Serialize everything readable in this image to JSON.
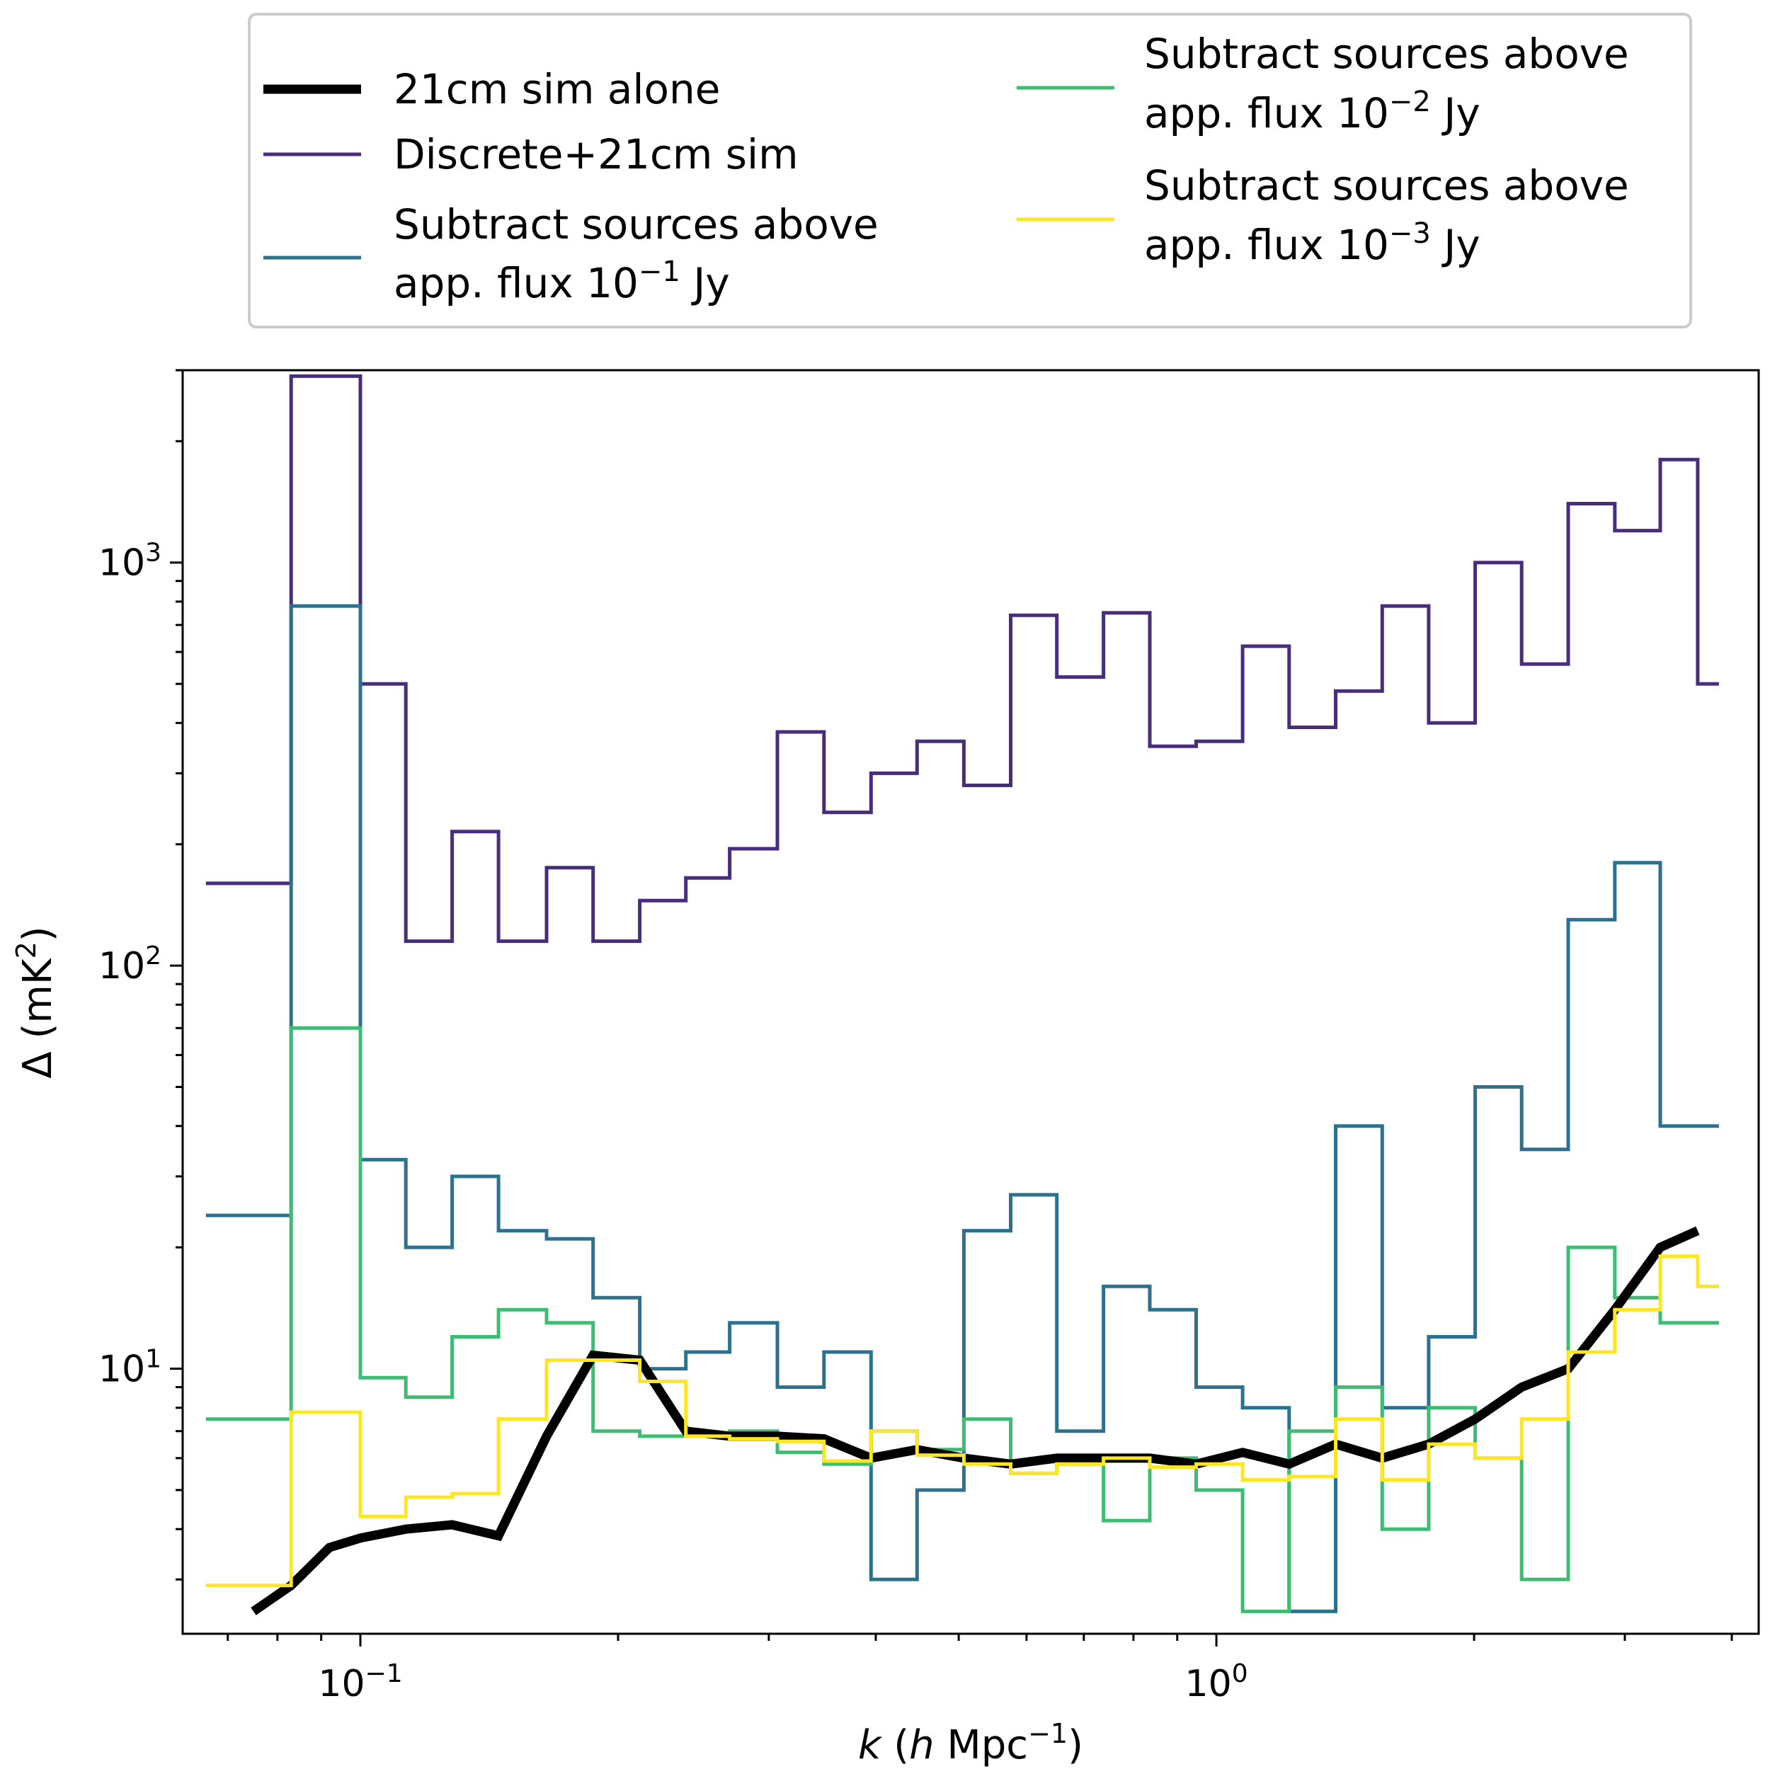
{
  "chart_data": {
    "type": "line",
    "xscale": "log",
    "yscale": "log",
    "xlim": [
      0.062,
      4.3
    ],
    "ylim": [
      2.2,
      3000
    ],
    "xlabel": {
      "italic": "k",
      "text1": " (",
      "italic2": "h",
      "text2": " Mpc",
      "sup": "−1",
      "text3": ")"
    },
    "ylabel": {
      "text": "Δ (mK",
      "sup": "2",
      "close": ")"
    },
    "x_tick_labels": [
      {
        "value": 0.1,
        "base": "10",
        "exp": "−1"
      },
      {
        "value": 1,
        "base": "10",
        "exp": "0"
      }
    ],
    "y_tick_labels": [
      {
        "value": 10,
        "base": "10",
        "exp": "1"
      },
      {
        "value": 100,
        "base": "10",
        "exp": "2"
      },
      {
        "value": 1000,
        "base": "10",
        "exp": "3"
      }
    ],
    "legend_placement": "top, above plot",
    "series": [
      {
        "key": "discrete",
        "color": "#472d7b",
        "width": 5,
        "step": true,
        "legend": [
          "Discrete+21cm sim"
        ],
        "x": [
          0.066,
          0.083,
          0.1,
          0.113,
          0.128,
          0.145,
          0.165,
          0.187,
          0.212,
          0.24,
          0.27,
          0.307,
          0.348,
          0.395,
          0.447,
          0.507,
          0.575,
          0.651,
          0.738,
          0.836,
          0.947,
          1.073,
          1.216,
          1.378,
          1.562,
          1.77,
          2.006,
          2.273,
          2.576,
          2.92,
          3.3,
          3.65
        ],
        "y": [
          160,
          2900,
          500,
          115,
          215,
          115,
          175,
          115,
          145,
          165,
          195,
          380,
          240,
          300,
          360,
          280,
          740,
          520,
          750,
          350,
          360,
          620,
          390,
          480,
          780,
          400,
          1000,
          560,
          1400,
          1200,
          1800,
          500
        ]
      },
      {
        "key": "sub1",
        "color": "#2c728e",
        "width": 5,
        "step": true,
        "legend": [
          "Subtract sources above",
          "app. flux 10",
          "−1",
          " Jy"
        ],
        "x": [
          0.066,
          0.083,
          0.1,
          0.113,
          0.128,
          0.145,
          0.165,
          0.187,
          0.212,
          0.24,
          0.27,
          0.307,
          0.348,
          0.395,
          0.447,
          0.507,
          0.575,
          0.651,
          0.738,
          0.836,
          0.947,
          1.073,
          1.216,
          1.378,
          1.562,
          1.77,
          2.006,
          2.273,
          2.576,
          2.92,
          3.3,
          3.65
        ],
        "y": [
          24,
          780,
          33,
          20,
          30,
          22,
          21,
          15,
          10,
          11,
          13,
          9,
          11,
          3,
          5,
          22,
          27,
          7,
          16,
          14,
          9,
          8,
          2.5,
          40,
          8,
          12,
          50,
          35,
          130,
          180,
          40,
          40
        ]
      },
      {
        "key": "sub2",
        "color": "#3fbc73",
        "width": 5,
        "step": true,
        "legend": [
          "Subtract sources above",
          "app. flux 10",
          "−2",
          " Jy"
        ],
        "x": [
          0.066,
          0.083,
          0.1,
          0.113,
          0.128,
          0.145,
          0.165,
          0.187,
          0.212,
          0.24,
          0.27,
          0.307,
          0.348,
          0.395,
          0.447,
          0.507,
          0.575,
          0.651,
          0.738,
          0.836,
          0.947,
          1.073,
          1.216,
          1.378,
          1.562,
          1.77,
          2.006,
          2.273,
          2.576,
          2.92,
          3.3,
          3.65
        ],
        "y": [
          7.5,
          70,
          9.5,
          8.5,
          12,
          14,
          13,
          7,
          6.8,
          6.8,
          7.0,
          6.2,
          5.8,
          7,
          6.3,
          7.5,
          5.5,
          5.8,
          4.2,
          6.0,
          5.0,
          2.5,
          7.0,
          9.0,
          4.0,
          8.0,
          6.0,
          3.0,
          20.0,
          15.0,
          13.0,
          13.0
        ]
      },
      {
        "key": "sub3",
        "color": "#fde725",
        "width": 5,
        "step": true,
        "legend": [
          "Subtract sources above",
          "app. flux 10",
          "−3",
          " Jy"
        ],
        "x": [
          0.066,
          0.083,
          0.1,
          0.113,
          0.128,
          0.145,
          0.165,
          0.187,
          0.212,
          0.24,
          0.27,
          0.307,
          0.348,
          0.395,
          0.447,
          0.507,
          0.575,
          0.651,
          0.738,
          0.836,
          0.947,
          1.073,
          1.216,
          1.378,
          1.562,
          1.77,
          2.006,
          2.273,
          2.576,
          2.92,
          3.3,
          3.65
        ],
        "y": [
          2.9,
          7.8,
          4.3,
          4.8,
          4.9,
          7.5,
          10.5,
          10.5,
          9.3,
          6.8,
          6.7,
          6.6,
          5.9,
          7.0,
          6.1,
          5.8,
          5.5,
          5.8,
          6.0,
          5.7,
          5.8,
          5.3,
          5.4,
          7.5,
          5.3,
          6.5,
          6.0,
          7.5,
          11.0,
          14.0,
          19.0,
          16.0
        ]
      },
      {
        "key": "sim",
        "color": "#000000",
        "width": 13,
        "step": false,
        "legend": [
          "21cm sim alone"
        ],
        "x": [
          0.075,
          0.083,
          0.092,
          0.1,
          0.113,
          0.128,
          0.145,
          0.165,
          0.187,
          0.212,
          0.24,
          0.27,
          0.307,
          0.348,
          0.395,
          0.447,
          0.507,
          0.575,
          0.651,
          0.738,
          0.836,
          0.947,
          1.073,
          1.216,
          1.378,
          1.562,
          1.77,
          2.006,
          2.273,
          2.576,
          2.92,
          3.3,
          3.65
        ],
        "y": [
          2.5,
          2.9,
          3.6,
          3.8,
          4.0,
          4.1,
          3.85,
          6.8,
          10.8,
          10.5,
          7.0,
          6.8,
          6.8,
          6.7,
          6.0,
          6.3,
          6.0,
          5.8,
          6.0,
          6.0,
          6.0,
          5.8,
          6.2,
          5.8,
          6.5,
          6.0,
          6.5,
          7.5,
          9.0,
          10.0,
          14.0,
          20.0,
          22.0
        ]
      }
    ]
  }
}
